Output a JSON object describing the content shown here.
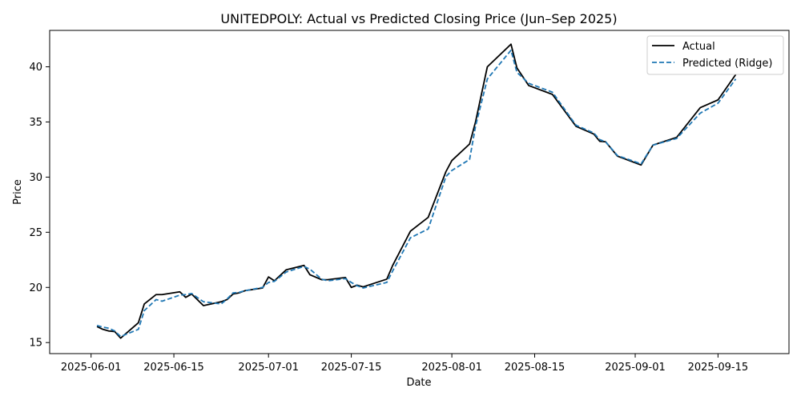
{
  "chart_data": {
    "type": "line",
    "title": "UNITEDPOLY: Actual vs Predicted Closing Price (Jun–Sep 2025)",
    "xlabel": "Date",
    "ylabel": "Price",
    "xlim": [
      "2025-05-25",
      "2025-09-27"
    ],
    "ylim": [
      14.0,
      43.3
    ],
    "x_ticks": [
      "2025-06-01",
      "2025-06-15",
      "2025-07-01",
      "2025-07-15",
      "2025-08-01",
      "2025-08-15",
      "2025-09-01",
      "2025-09-15"
    ],
    "y_ticks": [
      15,
      20,
      25,
      30,
      35,
      40
    ],
    "grid": false,
    "legend_position": "top-right",
    "series": [
      {
        "name": "Actual",
        "color": "#000000",
        "style": "solid",
        "points": [
          [
            "2025-06-02",
            16.45
          ],
          [
            "2025-06-03",
            16.2
          ],
          [
            "2025-06-04",
            16.05
          ],
          [
            "2025-06-05",
            16.0
          ],
          [
            "2025-06-06",
            15.4
          ],
          [
            "2025-06-09",
            16.8
          ],
          [
            "2025-06-10",
            18.5
          ],
          [
            "2025-06-12",
            19.35
          ],
          [
            "2025-06-13",
            19.35
          ],
          [
            "2025-06-16",
            19.6
          ],
          [
            "2025-06-17",
            19.1
          ],
          [
            "2025-06-18",
            19.4
          ],
          [
            "2025-06-20",
            18.35
          ],
          [
            "2025-06-23",
            18.7
          ],
          [
            "2025-06-24",
            18.9
          ],
          [
            "2025-06-25",
            19.4
          ],
          [
            "2025-06-26",
            19.5
          ],
          [
            "2025-06-27",
            19.7
          ],
          [
            "2025-06-30",
            19.95
          ],
          [
            "2025-07-01",
            20.95
          ],
          [
            "2025-07-02",
            20.6
          ],
          [
            "2025-07-04",
            21.6
          ],
          [
            "2025-07-07",
            22.0
          ],
          [
            "2025-07-08",
            21.15
          ],
          [
            "2025-07-10",
            20.7
          ],
          [
            "2025-07-11",
            20.7
          ],
          [
            "2025-07-14",
            20.9
          ],
          [
            "2025-07-15",
            20.0
          ],
          [
            "2025-07-16",
            20.2
          ],
          [
            "2025-07-17",
            20.05
          ],
          [
            "2025-07-21",
            20.75
          ],
          [
            "2025-07-22",
            22.0
          ],
          [
            "2025-07-25",
            25.1
          ],
          [
            "2025-07-28",
            26.35
          ],
          [
            "2025-07-31",
            30.5
          ],
          [
            "2025-08-01",
            31.5
          ],
          [
            "2025-08-04",
            33.0
          ],
          [
            "2025-08-05",
            35.0
          ],
          [
            "2025-08-07",
            40.0
          ],
          [
            "2025-08-11",
            42.05
          ],
          [
            "2025-08-12",
            39.9
          ],
          [
            "2025-08-14",
            38.3
          ],
          [
            "2025-08-18",
            37.5
          ],
          [
            "2025-08-22",
            34.6
          ],
          [
            "2025-08-25",
            33.9
          ],
          [
            "2025-08-26",
            33.25
          ],
          [
            "2025-08-27",
            33.2
          ],
          [
            "2025-08-29",
            31.9
          ],
          [
            "2025-09-02",
            31.1
          ],
          [
            "2025-09-04",
            32.9
          ],
          [
            "2025-09-08",
            33.6
          ],
          [
            "2025-09-12",
            36.3
          ],
          [
            "2025-09-15",
            37.0
          ],
          [
            "2025-09-18",
            39.3
          ]
        ]
      },
      {
        "name": "Predicted (Ridge)",
        "color": "#1f77b4",
        "style": "dashed",
        "points": [
          [
            "2025-06-02",
            16.55
          ],
          [
            "2025-06-03",
            16.4
          ],
          [
            "2025-06-04",
            16.3
          ],
          [
            "2025-06-05",
            16.05
          ],
          [
            "2025-06-06",
            15.55
          ],
          [
            "2025-06-09",
            16.2
          ],
          [
            "2025-06-10",
            17.9
          ],
          [
            "2025-06-12",
            18.9
          ],
          [
            "2025-06-13",
            18.75
          ],
          [
            "2025-06-16",
            19.3
          ],
          [
            "2025-06-17",
            19.35
          ],
          [
            "2025-06-18",
            19.45
          ],
          [
            "2025-06-20",
            18.7
          ],
          [
            "2025-06-23",
            18.5
          ],
          [
            "2025-06-24",
            18.95
          ],
          [
            "2025-06-25",
            19.5
          ],
          [
            "2025-06-26",
            19.55
          ],
          [
            "2025-06-27",
            19.7
          ],
          [
            "2025-06-30",
            20.0
          ],
          [
            "2025-07-01",
            20.45
          ],
          [
            "2025-07-02",
            20.55
          ],
          [
            "2025-07-04",
            21.4
          ],
          [
            "2025-07-07",
            21.9
          ],
          [
            "2025-07-08",
            21.65
          ],
          [
            "2025-07-10",
            20.75
          ],
          [
            "2025-07-11",
            20.6
          ],
          [
            "2025-07-14",
            20.8
          ],
          [
            "2025-07-15",
            20.45
          ],
          [
            "2025-07-16",
            20.15
          ],
          [
            "2025-07-17",
            19.95
          ],
          [
            "2025-07-21",
            20.45
          ],
          [
            "2025-07-22",
            21.5
          ],
          [
            "2025-07-25",
            24.5
          ],
          [
            "2025-07-28",
            25.3
          ],
          [
            "2025-07-31",
            30.05
          ],
          [
            "2025-08-01",
            30.6
          ],
          [
            "2025-08-04",
            31.6
          ],
          [
            "2025-08-05",
            34.6
          ],
          [
            "2025-08-07",
            38.9
          ],
          [
            "2025-08-11",
            41.5
          ],
          [
            "2025-08-12",
            39.5
          ],
          [
            "2025-08-14",
            38.5
          ],
          [
            "2025-08-18",
            37.7
          ],
          [
            "2025-08-22",
            34.7
          ],
          [
            "2025-08-25",
            34.0
          ],
          [
            "2025-08-26",
            33.4
          ],
          [
            "2025-08-27",
            33.2
          ],
          [
            "2025-08-29",
            31.95
          ],
          [
            "2025-09-02",
            31.2
          ],
          [
            "2025-09-04",
            32.9
          ],
          [
            "2025-09-08",
            33.5
          ],
          [
            "2025-09-12",
            35.8
          ],
          [
            "2025-09-15",
            36.7
          ],
          [
            "2025-09-18",
            38.9
          ]
        ]
      }
    ]
  }
}
